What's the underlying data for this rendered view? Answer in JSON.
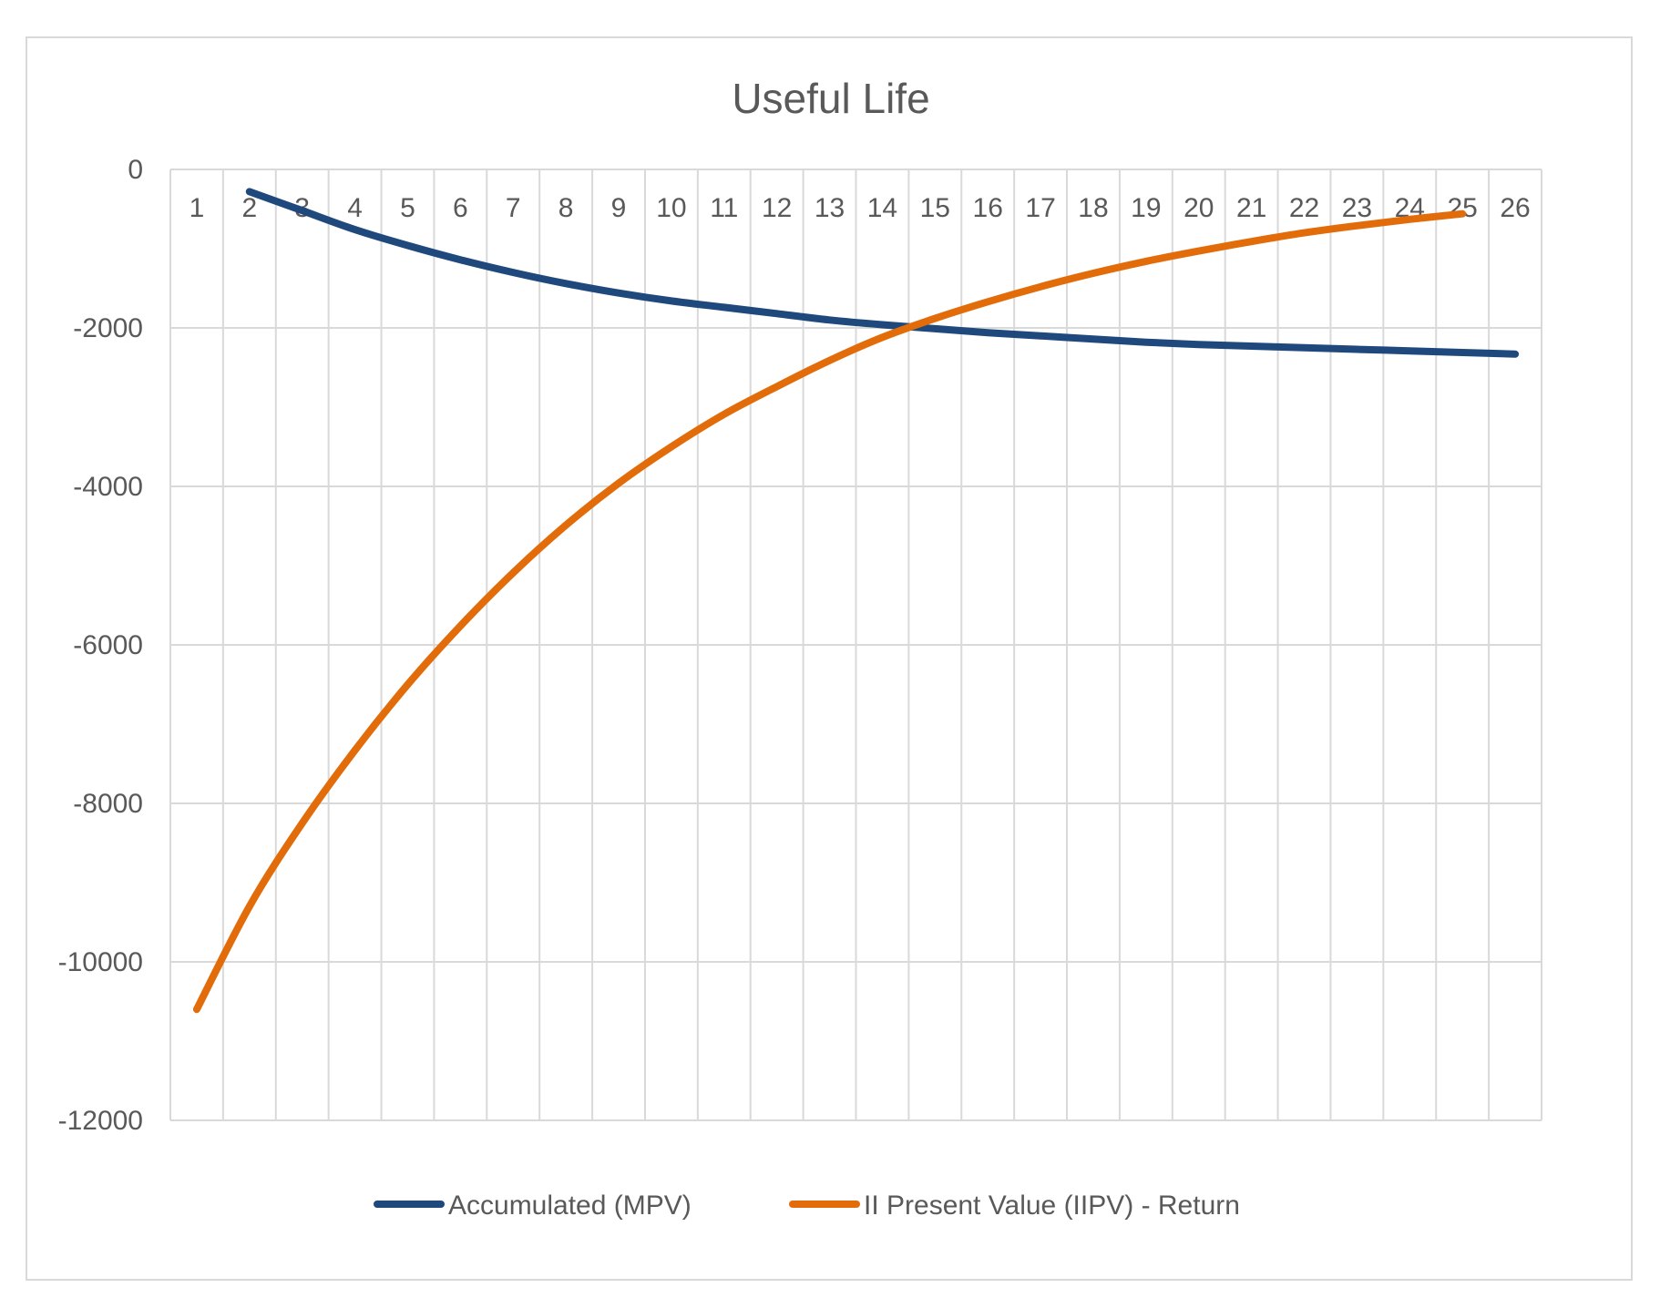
{
  "chart_data": {
    "type": "line",
    "title": "Useful Life",
    "xlabel": "",
    "ylabel": "",
    "ylim": [
      -12000,
      0
    ],
    "yticks": [
      0,
      -2000,
      -4000,
      -6000,
      -8000,
      -10000,
      -12000
    ],
    "ytick_labels": [
      "0",
      "-2000",
      "-4000",
      "-6000",
      "-8000",
      "-10000",
      "-12000"
    ],
    "categories": [
      "1",
      "2",
      "3",
      "4",
      "5",
      "6",
      "7",
      "8",
      "9",
      "10",
      "11",
      "12",
      "13",
      "14",
      "15",
      "16",
      "17",
      "18",
      "19",
      "20",
      "21",
      "22",
      "23",
      "24",
      "25",
      "26"
    ],
    "x_axis_position": "top",
    "grid": true,
    "legend": "bottom",
    "series": [
      {
        "name": "Accumulated (MPV)",
        "color": "#1f497d",
        "x": [
          2,
          3,
          4,
          5,
          6,
          7,
          8,
          9,
          10,
          11,
          12,
          13,
          14,
          15,
          16,
          17,
          18,
          19,
          20,
          21,
          22,
          23,
          24,
          25,
          26
        ],
        "values": [
          -280,
          -520,
          -760,
          -960,
          -1140,
          -1300,
          -1440,
          -1560,
          -1660,
          -1740,
          -1820,
          -1900,
          -1960,
          -2010,
          -2060,
          -2100,
          -2140,
          -2180,
          -2210,
          -2230,
          -2250,
          -2270,
          -2290,
          -2310,
          -2330
        ]
      },
      {
        "name": "II Present Value (IIPV) - Return",
        "color": "#e36c0a",
        "x": [
          1,
          2,
          3,
          4,
          5,
          6,
          7,
          8,
          9,
          10,
          11,
          12,
          13,
          14,
          15,
          16,
          17,
          18,
          19,
          20,
          21,
          22,
          23,
          24,
          25
        ],
        "values": [
          -10600,
          -9300,
          -8250,
          -7330,
          -6500,
          -5760,
          -5090,
          -4490,
          -3960,
          -3500,
          -3090,
          -2740,
          -2410,
          -2120,
          -1880,
          -1670,
          -1480,
          -1310,
          -1160,
          -1030,
          -910,
          -800,
          -710,
          -630,
          -560
        ]
      }
    ]
  }
}
